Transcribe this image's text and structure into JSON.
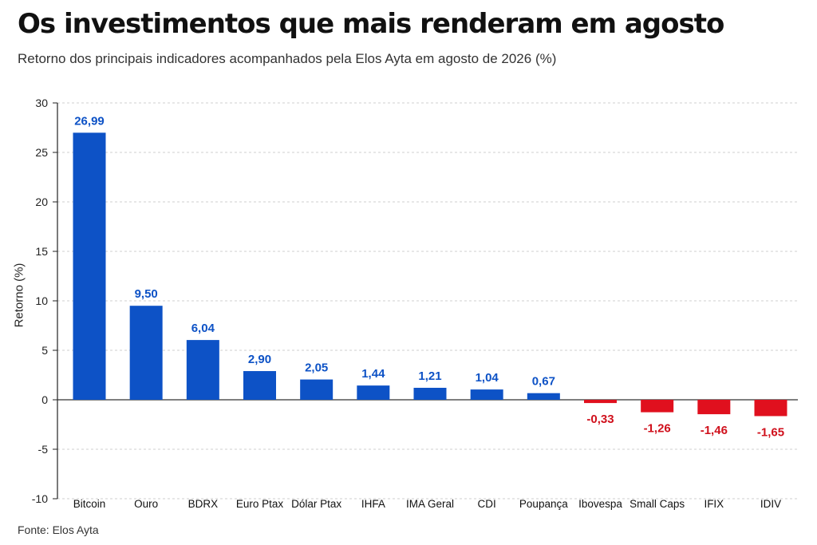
{
  "header": {
    "title": "Os investimentos que mais renderam em agosto",
    "subtitle": "Retorno dos principais indicadores acompanhados pela Elos Ayta em agosto de 2026 (%)"
  },
  "footer": {
    "source": "Fonte: Elos Ayta"
  },
  "colors": {
    "positive": "#0d52c6",
    "negative": "#e0101e",
    "positive_label": "#0d52c6",
    "negative_label": "#d0101c"
  },
  "chart_data": {
    "type": "bar",
    "title": "Os investimentos que mais renderam em agosto",
    "subtitle": "Retorno dos principais indicadores acompanhados pela Elos Ayta em agosto de 2026 (%)",
    "xlabel": "",
    "ylabel": "Retorno (%)",
    "ylim": [
      -10,
      30
    ],
    "yticks": [
      -10,
      -5,
      0,
      5,
      10,
      15,
      20,
      25,
      30
    ],
    "grid": true,
    "categories": [
      "Bitcoin",
      "Ouro",
      "BDRX",
      "Euro Ptax",
      "Dólar Ptax",
      "IHFA",
      "IMA Geral",
      "CDI",
      "Poupança",
      "Ibovespa",
      "Small Caps",
      "IFIX",
      "IDIV"
    ],
    "values": [
      26.99,
      9.5,
      6.04,
      2.9,
      2.05,
      1.44,
      1.21,
      1.04,
      0.67,
      -0.33,
      -1.26,
      -1.46,
      -1.65
    ],
    "data_labels": [
      "26,99",
      "9,50",
      "6,04",
      "2,90",
      "2,05",
      "1,44",
      "1,21",
      "1,04",
      "0,67",
      "-0,33",
      "-1,26",
      "-1,46",
      "-1,65"
    ]
  }
}
